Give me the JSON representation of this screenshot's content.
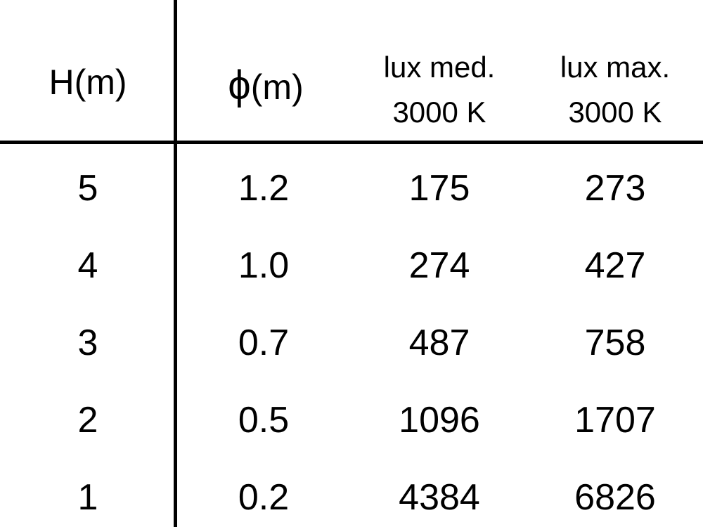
{
  "headers": {
    "height": "H(m)",
    "diameter_symbol": "ϕ",
    "diameter_unit": "(m)",
    "lux_med_line1": "lux med.",
    "lux_med_line2": "3000 K",
    "lux_max_line1": "lux max.",
    "lux_max_line2": "3000 K"
  },
  "rows": [
    [
      "5",
      "1.2",
      "175",
      "273"
    ],
    [
      "4",
      "1.0",
      "274",
      "427"
    ],
    [
      "3",
      "0.7",
      "487",
      "758"
    ],
    [
      "2",
      "0.5",
      "1096",
      "1707"
    ],
    [
      "1",
      "0.2",
      "4384",
      "6826"
    ]
  ]
}
